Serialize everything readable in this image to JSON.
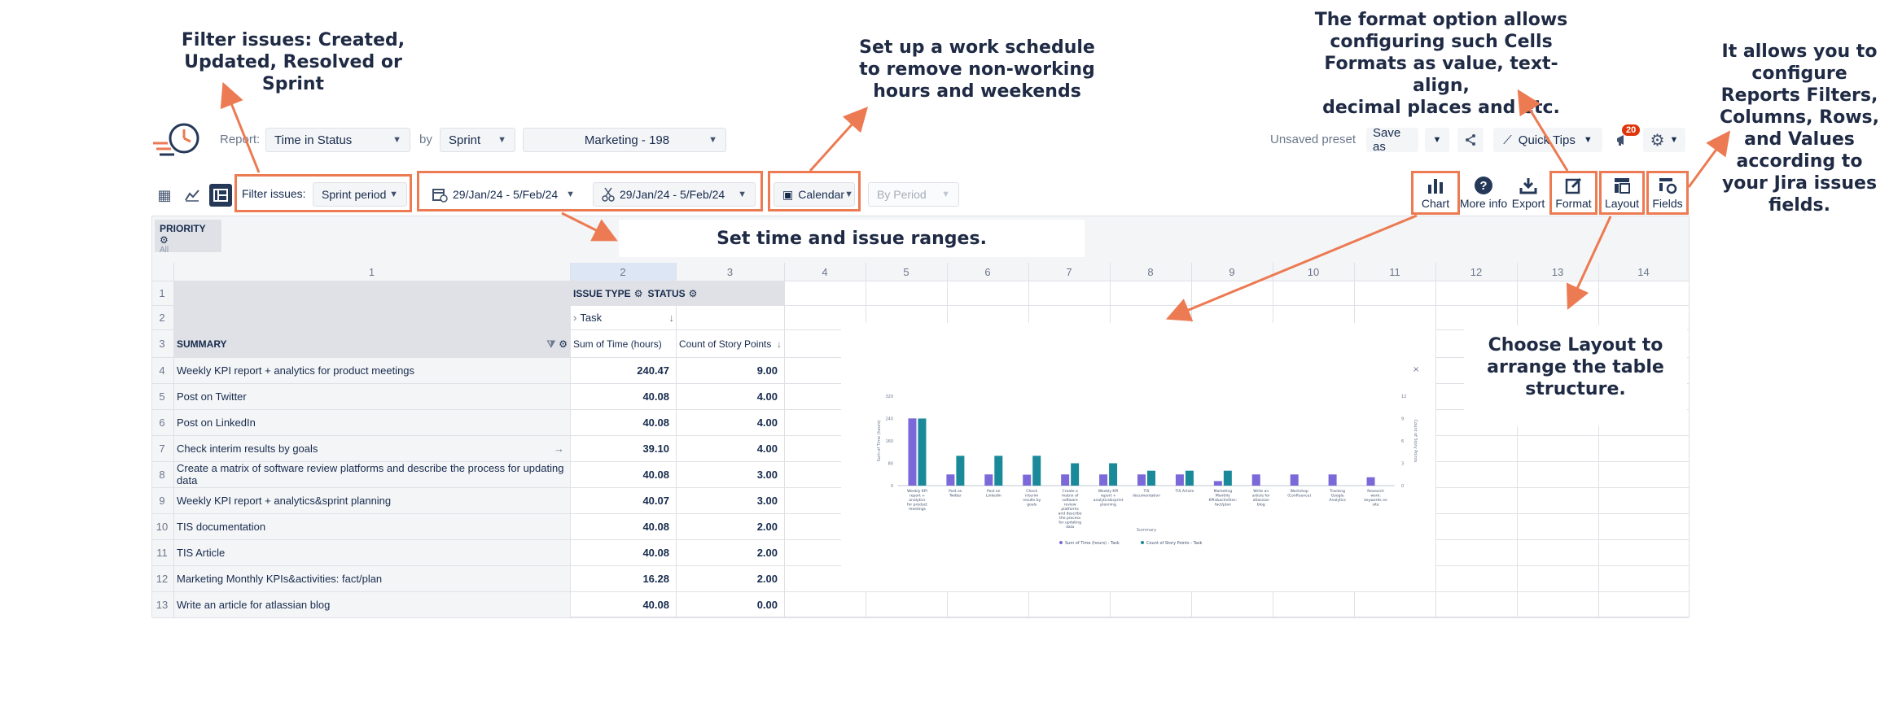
{
  "annotations": {
    "filter": [
      "Filter issues: Created,",
      "Updated, Resolved or Sprint"
    ],
    "schedule": [
      "Set up a work schedule",
      "to remove non-working",
      "hours and weekends"
    ],
    "format": [
      "The format option allows",
      "configuring such Cells",
      "Formats as value, text-align,",
      "decimal places and etc."
    ],
    "fields": [
      "It allows you to",
      "configure",
      "Reports Filters,",
      "Columns, Rows,",
      "and Values",
      "according to",
      "your Jira issues",
      "fields."
    ],
    "ranges": "Set time and issue ranges.",
    "layout": [
      "Choose Layout to",
      "arrange the table",
      "structure."
    ]
  },
  "toolbar": {
    "report_label": "Report:",
    "report_value": "Time in Status",
    "by_label": "by",
    "by_value": "Sprint",
    "project_value": "Marketing - 198",
    "unsaved": "Unsaved preset",
    "save_as": "Save as",
    "quick_tips": "Quick Tips",
    "notif_count": "20"
  },
  "filters": {
    "filter_label": "Filter issues:",
    "filter_value": "Sprint period",
    "date_range_1": "29/Jan/24 - 5/Feb/24",
    "date_range_2": "29/Jan/24 - 5/Feb/24",
    "calendar": "Calendar",
    "by_period": "By Period"
  },
  "tools": {
    "chart": "Chart",
    "more_info": "More info",
    "export": "Export",
    "format": "Format",
    "layout": "Layout",
    "fields": "Fields"
  },
  "pivot": {
    "priority_label": "PRIORITY",
    "priority_value": "All",
    "issue_type": "ISSUE TYPE",
    "status": "STATUS",
    "task": "Task",
    "summary": "SUMMARY",
    "sum_time": "Sum of Time (hours)",
    "count_sp": "Count of Story Points",
    "col_numbers": [
      "1",
      "2",
      "3",
      "4",
      "5",
      "6",
      "7",
      "8",
      "9",
      "10",
      "11",
      "12",
      "13",
      "14"
    ],
    "row_numbers": [
      "1",
      "2",
      "3",
      "4",
      "5",
      "6",
      "7",
      "8",
      "9",
      "10",
      "11",
      "12",
      "13"
    ],
    "rows": [
      {
        "summary": "Weekly KPI report + analytics for product meetings",
        "time": "240.47",
        "points": "9.00"
      },
      {
        "summary": "Post on Twitter",
        "time": "40.08",
        "points": "4.00"
      },
      {
        "summary": "Post on LinkedIn",
        "time": "40.08",
        "points": "4.00"
      },
      {
        "summary": "Check interim results by goals",
        "time": "39.10",
        "points": "4.00"
      },
      {
        "summary": "Create a matrix of software review platforms and describe the process for updating data",
        "time": "40.08",
        "points": "3.00"
      },
      {
        "summary": "Weekly KPI report + analytics&sprint planning",
        "time": "40.07",
        "points": "3.00"
      },
      {
        "summary": "TIS documentation",
        "time": "40.08",
        "points": "2.00"
      },
      {
        "summary": "TIS Article",
        "time": "40.08",
        "points": "2.00"
      },
      {
        "summary": "Marketing Monthly KPIs&activities: fact/plan",
        "time": "16.28",
        "points": "2.00"
      },
      {
        "summary": "Write an article for atlassian blog",
        "time": "40.08",
        "points": "0.00"
      }
    ]
  },
  "chart_data": {
    "type": "bar",
    "categories": [
      "Weekly KPI report + analytics for product meetings",
      "Post on Twitter",
      "Post on LinkedIn",
      "Check interim results by goals",
      "Create a matrix of software review platforms and describe the process for updating data",
      "Weekly KPI report + analytics&sprint planning",
      "TIS documentation",
      "TIS Article",
      "Marketing Monthly KPIs&activities: fact/plan",
      "Write an article for atlassian blog",
      "Workshop (Confluence)",
      "Tracking Google Analytics",
      "Research work: keywords on site"
    ],
    "series": [
      {
        "name": "Sum of Time (hours) - Task",
        "values": [
          240.47,
          40.08,
          40.08,
          39.1,
          40.08,
          40.07,
          40.08,
          40.08,
          16.28,
          40.08,
          40,
          40,
          30
        ],
        "color": "#7b68d9"
      },
      {
        "name": "Count of Story Points - Task",
        "values": [
          9,
          4,
          4,
          4,
          3,
          3,
          2,
          2,
          2,
          0,
          0,
          0,
          0
        ],
        "color": "#1a8a9a"
      }
    ],
    "xlabel": "Summary",
    "ylabel": "Sum of Time (hours)",
    "y2label": "Count of Story Points",
    "ylim": [
      0,
      320
    ],
    "y2lim": [
      0,
      12
    ],
    "yticks": [
      "320",
      "240",
      "160",
      "80",
      "0"
    ],
    "y2ticks": [
      "12",
      "9",
      "6",
      "3",
      "0"
    ],
    "legend": "bottom",
    "close": "×"
  },
  "colors": {
    "accent": "#ec7a52",
    "primary": "#253858",
    "notif": "#de350b"
  }
}
